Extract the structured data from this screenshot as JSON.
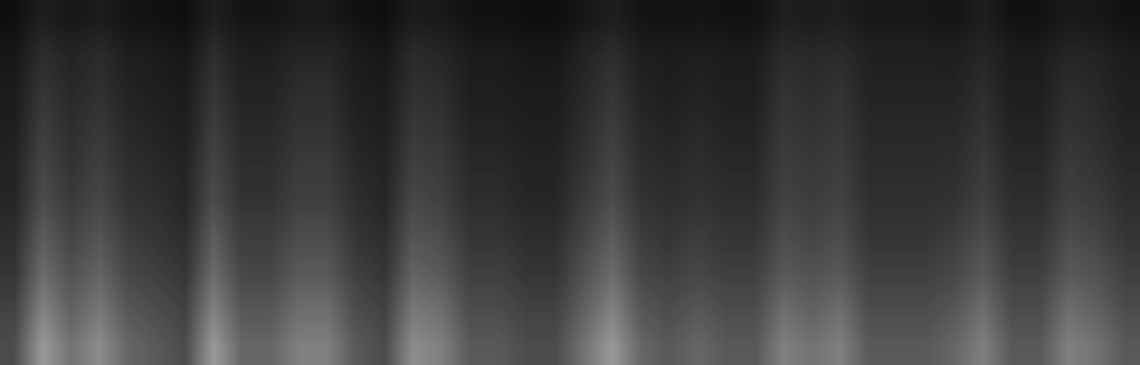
{
  "chart_data": {
    "type": "heatmap",
    "tick_labels": false,
    "color_range": [
      0,
      100
    ],
    "cells": [
      [
        6,
        12,
        9,
        11,
        8,
        7,
        6,
        12,
        8,
        8,
        10,
        10,
        7,
        6,
        11,
        10,
        7,
        7,
        6,
        6,
        9,
        12,
        8,
        7,
        8,
        7,
        7,
        12,
        11,
        12,
        9,
        9,
        9,
        8,
        12,
        7,
        7,
        10,
        9,
        7
      ],
      [
        9,
        18,
        14,
        17,
        12,
        11,
        9,
        18,
        12,
        12,
        15,
        15,
        11,
        9,
        17,
        15,
        11,
        11,
        9,
        9,
        14,
        18,
        12,
        11,
        12,
        11,
        11,
        17,
        16,
        17,
        13,
        13,
        13,
        12,
        15,
        11,
        11,
        15,
        14,
        11
      ],
      [
        11,
        21,
        16,
        19,
        14,
        12,
        11,
        21,
        14,
        14,
        18,
        18,
        12,
        11,
        19,
        18,
        12,
        12,
        11,
        11,
        16,
        21,
        14,
        12,
        14,
        12,
        12,
        20,
        18,
        20,
        14,
        14,
        14,
        14,
        18,
        12,
        12,
        18,
        16,
        12
      ],
      [
        12,
        24,
        18,
        22,
        16,
        14,
        12,
        24,
        16,
        16,
        20,
        20,
        14,
        12,
        22,
        20,
        14,
        14,
        12,
        12,
        18,
        24,
        16,
        14,
        16,
        14,
        14,
        22,
        20,
        22,
        16,
        16,
        16,
        16,
        20,
        14,
        14,
        20,
        18,
        14
      ],
      [
        14,
        27,
        20,
        25,
        18,
        16,
        14,
        27,
        18,
        18,
        23,
        23,
        16,
        14,
        25,
        23,
        16,
        16,
        14,
        14,
        20,
        27,
        18,
        16,
        18,
        16,
        16,
        24,
        22,
        24,
        17,
        17,
        17,
        18,
        23,
        16,
        16,
        23,
        20,
        16
      ],
      [
        15,
        30,
        23,
        28,
        20,
        18,
        15,
        30,
        20,
        20,
        25,
        25,
        18,
        15,
        28,
        25,
        18,
        18,
        15,
        15,
        23,
        30,
        20,
        18,
        20,
        18,
        18,
        26,
        24,
        26,
        19,
        19,
        19,
        20,
        25,
        18,
        18,
        25,
        23,
        18
      ],
      [
        18,
        36,
        27,
        33,
        24,
        21,
        18,
        36,
        24,
        24,
        30,
        30,
        21,
        18,
        33,
        30,
        21,
        21,
        18,
        18,
        27,
        36,
        24,
        21,
        24,
        21,
        21,
        30,
        27,
        30,
        21,
        21,
        21,
        24,
        30,
        21,
        21,
        30,
        27,
        21
      ],
      [
        21,
        42,
        32,
        39,
        28,
        25,
        21,
        42,
        28,
        28,
        35,
        35,
        25,
        21,
        39,
        35,
        25,
        25,
        21,
        21,
        32,
        42,
        28,
        25,
        28,
        25,
        25,
        35,
        32,
        35,
        25,
        25,
        25,
        28,
        35,
        25,
        25,
        35,
        32,
        25
      ],
      [
        26,
        51,
        38,
        47,
        34,
        30,
        26,
        51,
        34,
        34,
        43,
        43,
        30,
        26,
        47,
        43,
        30,
        30,
        26,
        26,
        38,
        51,
        34,
        30,
        34,
        30,
        30,
        43,
        38,
        43,
        30,
        30,
        30,
        34,
        43,
        30,
        30,
        43,
        38,
        30
      ],
      [
        30,
        60,
        45,
        55,
        40,
        35,
        30,
        60,
        40,
        40,
        50,
        50,
        35,
        30,
        55,
        50,
        35,
        35,
        30,
        30,
        45,
        60,
        40,
        35,
        40,
        35,
        35,
        50,
        45,
        50,
        35,
        35,
        35,
        40,
        50,
        35,
        35,
        50,
        45,
        35
      ]
    ]
  }
}
